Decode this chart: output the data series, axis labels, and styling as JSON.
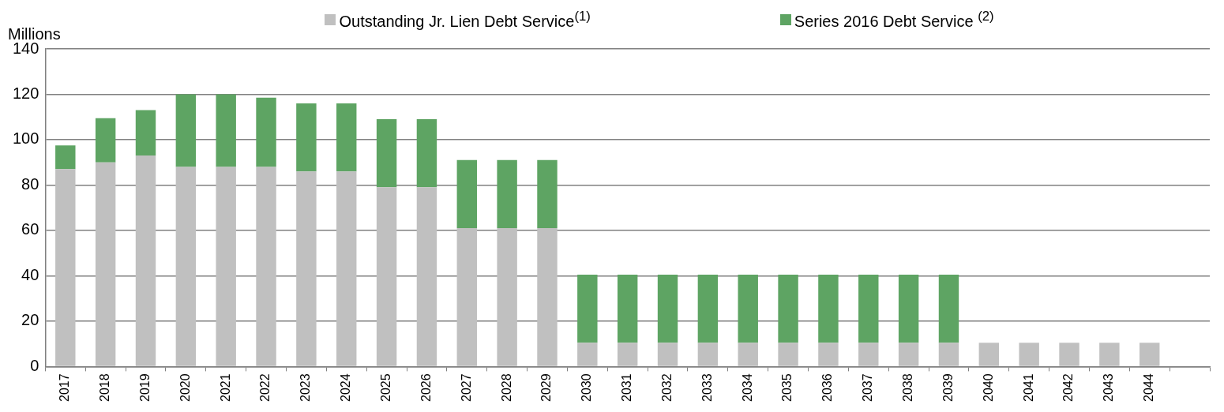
{
  "chart_data": {
    "type": "bar",
    "stacked": true,
    "ylabel": "Millions",
    "categories": [
      "2017",
      "2018",
      "2019",
      "2020",
      "2021",
      "2022",
      "2023",
      "2024",
      "2025",
      "2026",
      "2027",
      "2028",
      "2029",
      "2030",
      "2031",
      "2032",
      "2033",
      "2034",
      "2035",
      "2036",
      "2037",
      "2038",
      "2039",
      "2040",
      "2041",
      "2042",
      "2043",
      "2044",
      null
    ],
    "series": [
      {
        "name": "Outstanding Jr. Lien Debt Service$^{(1)}$",
        "color": "#c0c0c0",
        "values": [
          87,
          90,
          93,
          88,
          88,
          88,
          86,
          86,
          79,
          79,
          61,
          61,
          61,
          10.5,
          10.5,
          10.5,
          10.5,
          10.5,
          10.5,
          10.5,
          10.5,
          10.5,
          10.5,
          10.5,
          10.5,
          10.5,
          10.5,
          10.5,
          null
        ]
      },
      {
        "name": "Series 2016 Debt Service $^{(2)}$",
        "color": "#5ea463",
        "values": [
          10.5,
          19.5,
          20,
          32,
          32,
          30.5,
          30,
          30,
          30,
          30,
          30,
          30,
          30,
          30,
          30,
          30,
          30,
          30,
          30,
          30,
          30,
          30,
          30,
          null,
          null,
          null,
          null,
          null,
          null
        ]
      }
    ],
    "ylim": [
      0,
      140
    ],
    "yticks": [
      0,
      20,
      40,
      60,
      80,
      100,
      120,
      140
    ],
    "grid": "y",
    "legend": "top"
  }
}
